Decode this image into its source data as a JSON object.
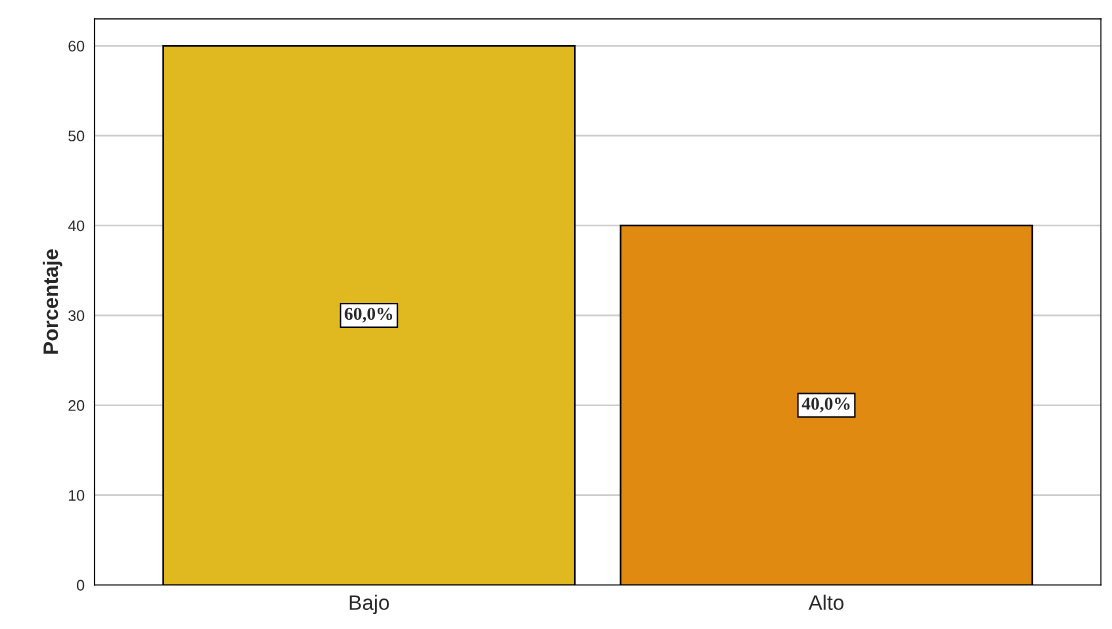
{
  "chart_data": {
    "type": "bar",
    "ylabel": "Porcentaje",
    "categories": [
      "Bajo",
      "Alto"
    ],
    "values": [
      60,
      40
    ],
    "colors": [
      "#e0b820",
      "#e08a12"
    ],
    "value_labels": [
      "60,0%",
      "40,0%"
    ],
    "ylim": [
      0,
      63
    ],
    "yticks": [
      0,
      10,
      20,
      30,
      40,
      50,
      60
    ],
    "grid": "y"
  }
}
